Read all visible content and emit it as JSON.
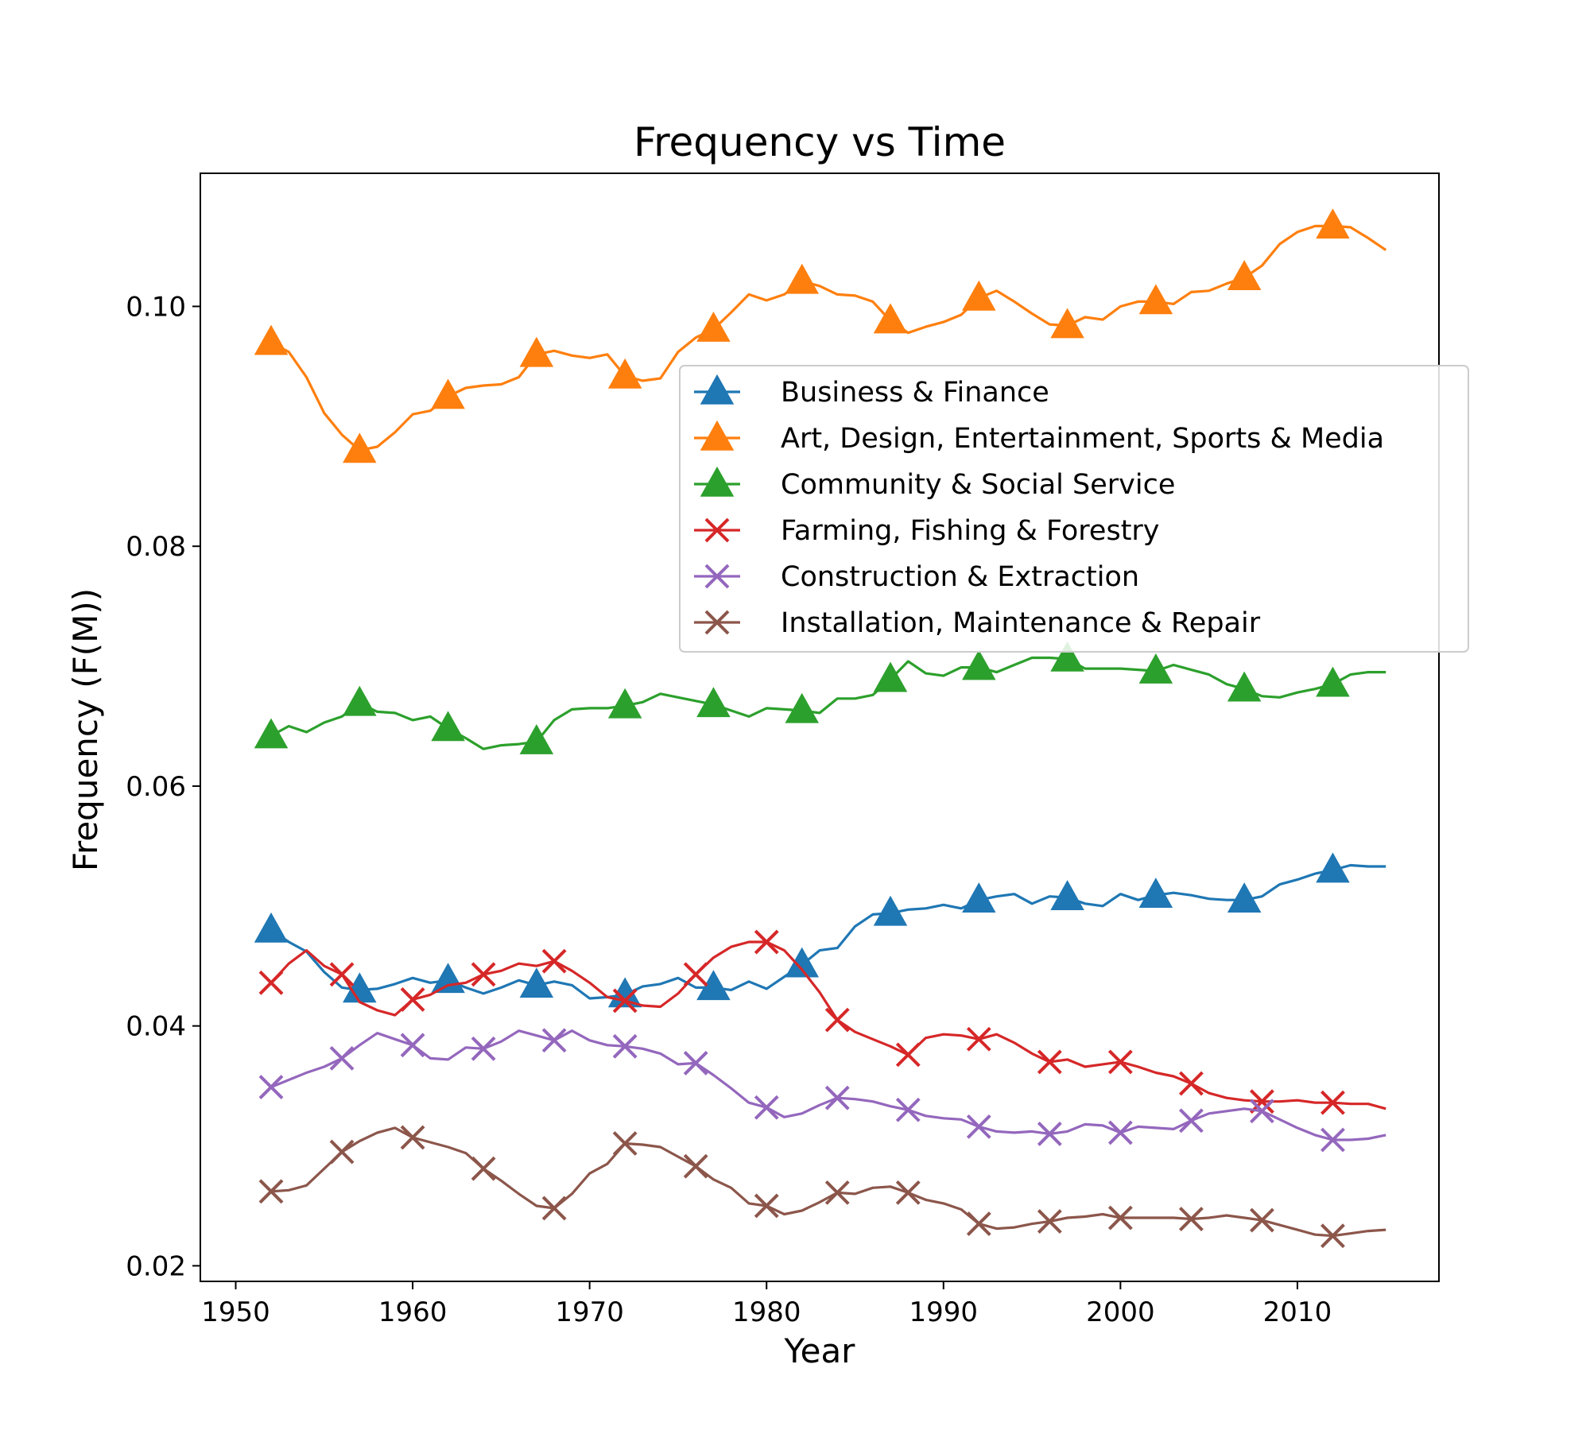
{
  "chart_data": {
    "type": "line",
    "title": "Frequency vs Time",
    "xlabel": "Year",
    "ylabel": "Frequency (F(M))",
    "xlim": [
      1948,
      2018
    ],
    "ylim": [
      0.0187,
      0.1111
    ],
    "xticks": [
      1950,
      1960,
      1970,
      1980,
      1990,
      2000,
      2010
    ],
    "yticks": [
      0.02,
      0.04,
      0.06,
      0.08,
      0.1
    ],
    "ytick_labels": [
      "0.02",
      "0.04",
      "0.06",
      "0.08",
      "0.10"
    ],
    "grid": false,
    "legend_position": "right",
    "x": [
      1952,
      1953,
      1954,
      1955,
      1956,
      1957,
      1958,
      1959,
      1960,
      1961,
      1962,
      1963,
      1964,
      1965,
      1966,
      1967,
      1968,
      1969,
      1970,
      1971,
      1972,
      1973,
      1974,
      1975,
      1976,
      1977,
      1978,
      1979,
      1980,
      1981,
      1982,
      1983,
      1984,
      1985,
      1986,
      1987,
      1988,
      1989,
      1990,
      1991,
      1992,
      1993,
      1994,
      1995,
      1996,
      1997,
      1998,
      1999,
      2000,
      2001,
      2002,
      2003,
      2004,
      2005,
      2006,
      2007,
      2008,
      2009,
      2010,
      2011,
      2012,
      2013,
      2014,
      2015
    ],
    "series": [
      {
        "name": "Business & Finance",
        "color": "#1f77b4",
        "marker": "triangle",
        "marker_x": [
          1952,
          1957,
          1962,
          1967,
          1972,
          1977,
          1982,
          1987,
          1992,
          1997,
          2002,
          2007,
          2012
        ],
        "values": [
          0.048,
          0.047,
          0.0462,
          0.0445,
          0.0432,
          0.043,
          0.0431,
          0.0435,
          0.044,
          0.0436,
          0.0438,
          0.0432,
          0.0427,
          0.0432,
          0.0438,
          0.0434,
          0.0437,
          0.0434,
          0.0423,
          0.0424,
          0.0426,
          0.0433,
          0.0435,
          0.044,
          0.0432,
          0.0432,
          0.043,
          0.0437,
          0.0431,
          0.0441,
          0.0451,
          0.0463,
          0.0465,
          0.0483,
          0.0493,
          0.0494,
          0.0497,
          0.0498,
          0.0501,
          0.0498,
          0.0505,
          0.0508,
          0.051,
          0.0502,
          0.0508,
          0.0507,
          0.0502,
          0.05,
          0.051,
          0.0505,
          0.0509,
          0.0511,
          0.0509,
          0.0506,
          0.0505,
          0.0505,
          0.0508,
          0.0518,
          0.0522,
          0.0527,
          0.053,
          0.0534,
          0.0533,
          0.0533
        ]
      },
      {
        "name": "Art, Design, Entertainment, Sports & Media",
        "color": "#ff7f0e",
        "marker": "triangle",
        "marker_x": [
          1952,
          1957,
          1962,
          1967,
          1972,
          1977,
          1982,
          1987,
          1992,
          1997,
          2002,
          2007,
          2012
        ],
        "values": [
          0.097,
          0.0962,
          0.0941,
          0.0911,
          0.0893,
          0.088,
          0.0883,
          0.0895,
          0.091,
          0.0913,
          0.0925,
          0.0932,
          0.0934,
          0.0935,
          0.0941,
          0.096,
          0.0963,
          0.0959,
          0.0957,
          0.096,
          0.0942,
          0.0938,
          0.094,
          0.0962,
          0.0974,
          0.0981,
          0.0995,
          0.101,
          0.1005,
          0.101,
          0.1021,
          0.1017,
          0.101,
          0.1009,
          0.1004,
          0.0988,
          0.0978,
          0.0983,
          0.0987,
          0.0993,
          0.1007,
          0.1013,
          0.1004,
          0.0994,
          0.0985,
          0.0984,
          0.0991,
          0.0989,
          0.1,
          0.1004,
          0.1004,
          0.1002,
          0.1012,
          0.1013,
          0.1019,
          0.1024,
          0.1034,
          0.1052,
          0.1062,
          0.1067,
          0.1067,
          0.1066,
          0.1057,
          0.1047
        ]
      },
      {
        "name": "Community & Social Service",
        "color": "#2ca02c",
        "marker": "triangle",
        "marker_x": [
          1952,
          1957,
          1962,
          1967,
          1972,
          1977,
          1982,
          1987,
          1992,
          1997,
          2002,
          2007,
          2012
        ],
        "values": [
          0.0642,
          0.065,
          0.0645,
          0.0653,
          0.0658,
          0.0669,
          0.0662,
          0.0661,
          0.0655,
          0.0658,
          0.0648,
          0.064,
          0.0631,
          0.0634,
          0.0635,
          0.0637,
          0.0655,
          0.0664,
          0.0665,
          0.0665,
          0.0667,
          0.067,
          0.0677,
          0.0674,
          0.0671,
          0.0668,
          0.0663,
          0.0658,
          0.0665,
          0.0664,
          0.0663,
          0.0661,
          0.0673,
          0.0673,
          0.0676,
          0.0689,
          0.0704,
          0.0694,
          0.0692,
          0.0699,
          0.0699,
          0.0695,
          0.0701,
          0.0707,
          0.0707,
          0.0706,
          0.0698,
          0.0698,
          0.0698,
          0.0697,
          0.0696,
          0.0701,
          0.0697,
          0.0693,
          0.0685,
          0.0681,
          0.0675,
          0.0674,
          0.0678,
          0.0681,
          0.0685,
          0.0693,
          0.0695,
          0.0695
        ]
      },
      {
        "name": "Farming, Fishing & Forestry",
        "color": "#d62728",
        "marker": "x",
        "marker_x": [
          1952,
          1956,
          1960,
          1964,
          1968,
          1972,
          1976,
          1980,
          1984,
          1988,
          1992,
          1996,
          2000,
          2004,
          2008,
          2012
        ],
        "values": [
          0.0436,
          0.0452,
          0.0463,
          0.045,
          0.0443,
          0.042,
          0.0413,
          0.0409,
          0.0422,
          0.0426,
          0.0434,
          0.0436,
          0.0443,
          0.0446,
          0.0452,
          0.045,
          0.0454,
          0.0446,
          0.0436,
          0.0424,
          0.0421,
          0.0417,
          0.0416,
          0.0427,
          0.0443,
          0.0457,
          0.0466,
          0.047,
          0.047,
          0.0463,
          0.0447,
          0.0428,
          0.0405,
          0.0395,
          0.0389,
          0.0383,
          0.0376,
          0.039,
          0.0393,
          0.0392,
          0.0389,
          0.0393,
          0.0386,
          0.0377,
          0.037,
          0.0372,
          0.0366,
          0.0368,
          0.037,
          0.0366,
          0.0361,
          0.0358,
          0.0352,
          0.0344,
          0.034,
          0.0338,
          0.0337,
          0.0337,
          0.0338,
          0.0336,
          0.0336,
          0.0335,
          0.0335,
          0.0331
        ]
      },
      {
        "name": "Construction & Extraction",
        "color": "#9467bd",
        "marker": "x",
        "marker_x": [
          1952,
          1956,
          1960,
          1964,
          1968,
          1972,
          1976,
          1980,
          1984,
          1988,
          1992,
          1996,
          2000,
          2004,
          2008,
          2012
        ],
        "values": [
          0.0349,
          0.0355,
          0.0361,
          0.0366,
          0.0373,
          0.0384,
          0.0394,
          0.0389,
          0.0384,
          0.0373,
          0.0372,
          0.0382,
          0.0381,
          0.0387,
          0.0396,
          0.0392,
          0.0388,
          0.0396,
          0.0388,
          0.0384,
          0.0383,
          0.0381,
          0.0377,
          0.0368,
          0.0369,
          0.0359,
          0.0348,
          0.0336,
          0.0332,
          0.0324,
          0.0327,
          0.0334,
          0.034,
          0.0339,
          0.0337,
          0.0333,
          0.033,
          0.0325,
          0.0323,
          0.0322,
          0.0316,
          0.0312,
          0.0311,
          0.0312,
          0.031,
          0.0312,
          0.0318,
          0.0317,
          0.0311,
          0.0316,
          0.0315,
          0.0314,
          0.0321,
          0.0327,
          0.0329,
          0.0331,
          0.0329,
          0.0322,
          0.0315,
          0.0309,
          0.0305,
          0.0305,
          0.0306,
          0.0309
        ]
      },
      {
        "name": "Installation, Maintenance & Repair",
        "color": "#8c564b",
        "marker": "x",
        "marker_x": [
          1952,
          1956,
          1960,
          1964,
          1968,
          1972,
          1976,
          1980,
          1984,
          1988,
          1992,
          1996,
          2000,
          2004,
          2008,
          2012
        ],
        "values": [
          0.0262,
          0.0263,
          0.0267,
          0.0281,
          0.0295,
          0.0304,
          0.0311,
          0.0315,
          0.0307,
          0.0303,
          0.0299,
          0.0294,
          0.0281,
          0.0271,
          0.026,
          0.025,
          0.0248,
          0.026,
          0.0277,
          0.0285,
          0.0302,
          0.0301,
          0.0299,
          0.0291,
          0.0283,
          0.0272,
          0.0265,
          0.0252,
          0.025,
          0.0243,
          0.0246,
          0.0253,
          0.0261,
          0.026,
          0.0265,
          0.0266,
          0.0261,
          0.0255,
          0.0252,
          0.0247,
          0.0235,
          0.0231,
          0.0232,
          0.0235,
          0.0237,
          0.024,
          0.0241,
          0.0243,
          0.024,
          0.024,
          0.024,
          0.024,
          0.0239,
          0.024,
          0.0242,
          0.024,
          0.0238,
          0.0234,
          0.023,
          0.0226,
          0.0225,
          0.0227,
          0.0229,
          0.023
        ]
      }
    ]
  }
}
